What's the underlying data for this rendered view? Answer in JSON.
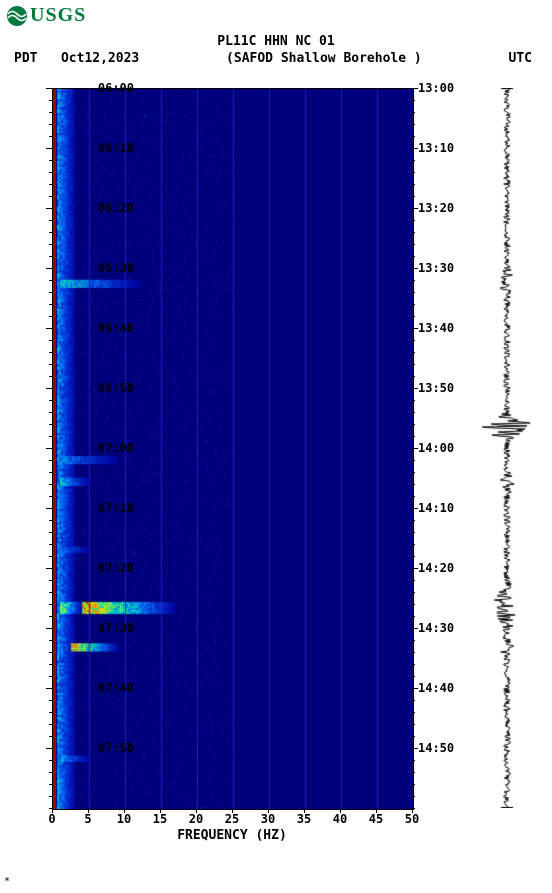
{
  "logo": {
    "text": "USGS",
    "color": "#007a3d"
  },
  "header": {
    "title": "PL11C HHN NC 01",
    "left_tz": "PDT",
    "date": "Oct12,2023",
    "station_label": "(SAFOD Shallow Borehole )",
    "right_tz": "UTC"
  },
  "spectrogram": {
    "type": "spectrogram-heatmap",
    "background_color": "#00007a",
    "mid_color": "#003fb0",
    "hot_colors": [
      "#0000a0",
      "#0030d0",
      "#0080ff",
      "#00e0c0",
      "#60ff60",
      "#f0f000",
      "#ff8000",
      "#ff2000"
    ],
    "left_edge_color": "#a00000",
    "xlim": [
      0,
      50
    ],
    "ylim_pdt": [
      "06:00",
      "08:00"
    ],
    "ylim_utc": [
      "13:00",
      "15:00"
    ],
    "xtick_step": 5,
    "ytick_minutes": 10,
    "y_minor_minutes": 2,
    "xlabel": "FREQUENCY (HZ)",
    "grid_color": "#2020c0",
    "features": [
      {
        "t": 0.27,
        "f_range": [
          0.02,
          0.24
        ],
        "intensity": 0.5,
        "width": 0.01
      },
      {
        "t": 0.515,
        "f_range": [
          0.02,
          0.18
        ],
        "intensity": 0.35,
        "width": 0.01
      },
      {
        "t": 0.545,
        "f_range": [
          0.02,
          0.1
        ],
        "intensity": 0.45,
        "width": 0.01
      },
      {
        "t": 0.72,
        "f_range": [
          0.08,
          0.34
        ],
        "intensity": 0.9,
        "width": 0.015
      },
      {
        "t": 0.72,
        "f_range": [
          0.02,
          0.08
        ],
        "intensity": 0.7,
        "width": 0.015
      },
      {
        "t": 0.775,
        "f_range": [
          0.05,
          0.18
        ],
        "intensity": 0.85,
        "width": 0.01
      },
      {
        "t": 0.64,
        "f_range": [
          0.02,
          0.1
        ],
        "intensity": 0.3,
        "width": 0.008
      },
      {
        "t": 0.93,
        "f_range": [
          0.02,
          0.1
        ],
        "intensity": 0.4,
        "width": 0.008
      }
    ],
    "low_freq_band": {
      "f_range": [
        0.01,
        0.06
      ],
      "base_intensity": 0.35
    },
    "y_ticks_left": [
      "06:00",
      "06:10",
      "06:20",
      "06:30",
      "06:40",
      "06:50",
      "07:00",
      "07:10",
      "07:20",
      "07:30",
      "07:40",
      "07:50"
    ],
    "y_ticks_right": [
      "13:00",
      "13:10",
      "13:20",
      "13:30",
      "13:40",
      "13:50",
      "14:00",
      "14:10",
      "14:20",
      "14:30",
      "14:40",
      "14:50"
    ],
    "x_ticks": [
      "0",
      "5",
      "10",
      "15",
      "20",
      "25",
      "30",
      "35",
      "40",
      "45",
      "50"
    ]
  },
  "waveform": {
    "type": "seismic-trace",
    "color": "#000000",
    "baseline_noise": 0.1,
    "events": [
      {
        "t": 0.27,
        "amp": 0.22,
        "dur": 0.03
      },
      {
        "t": 0.47,
        "amp": 1.0,
        "dur": 0.02
      },
      {
        "t": 0.545,
        "amp": 0.18,
        "dur": 0.02
      },
      {
        "t": 0.72,
        "amp": 0.4,
        "dur": 0.04
      },
      {
        "t": 0.775,
        "amp": 0.22,
        "dur": 0.02
      }
    ]
  },
  "footer": {
    "asterisk": "*"
  },
  "fonts": {
    "mono": "monospace",
    "title_size": 13,
    "tick_size": 12
  }
}
